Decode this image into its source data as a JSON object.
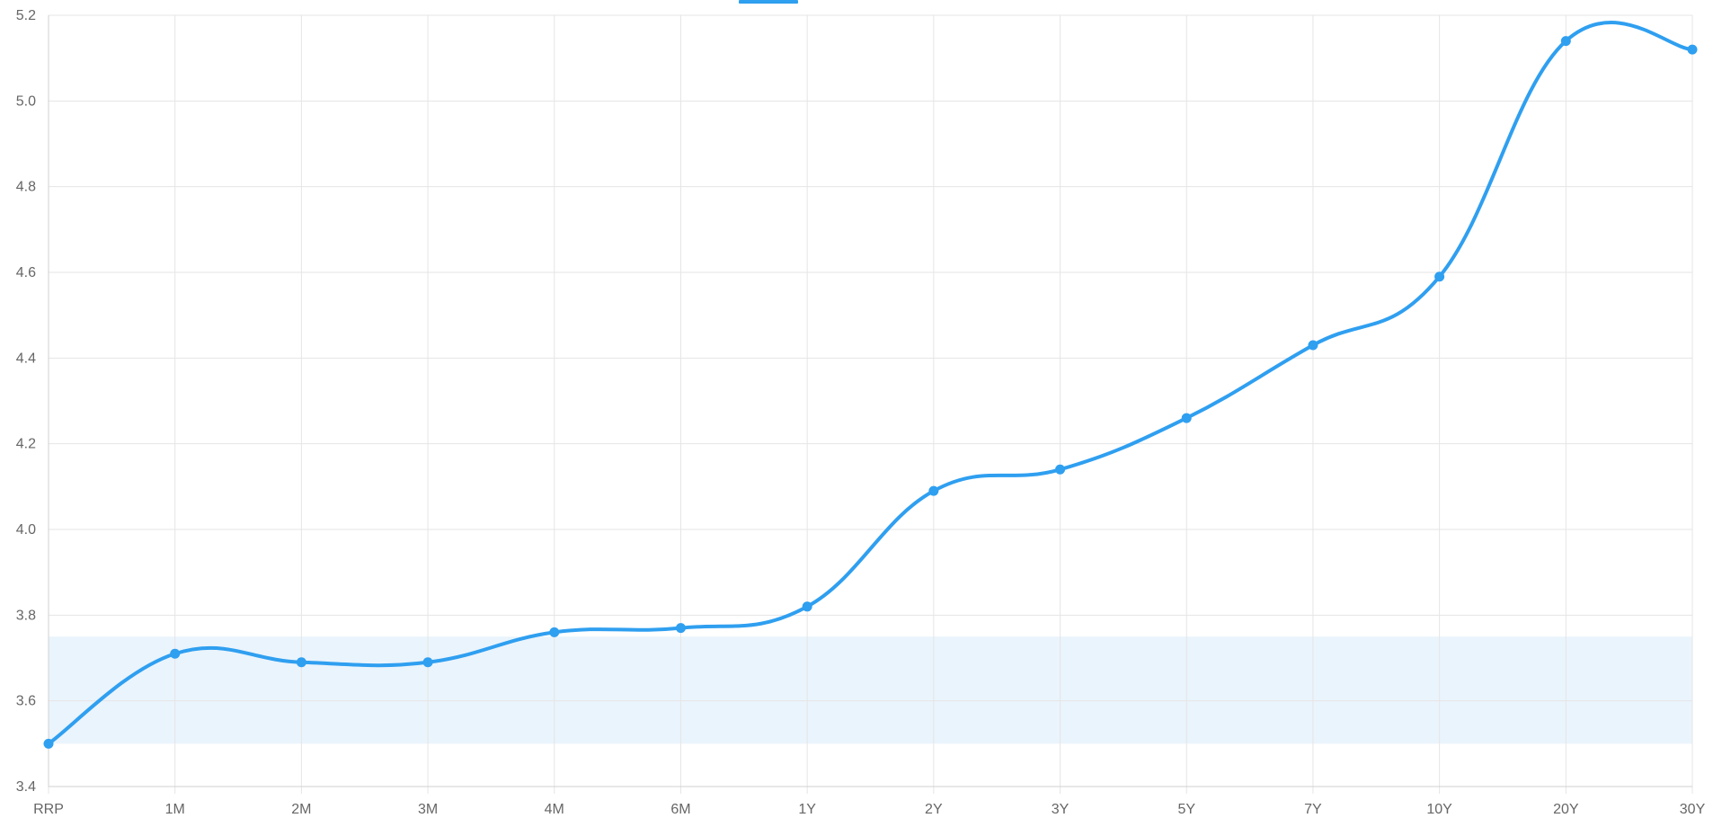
{
  "chart_data": {
    "type": "line",
    "title": "",
    "xlabel": "",
    "ylabel": "",
    "categories": [
      "RRP",
      "1M",
      "2M",
      "3M",
      "4M",
      "6M",
      "1Y",
      "2Y",
      "3Y",
      "5Y",
      "7Y",
      "10Y",
      "20Y",
      "30Y"
    ],
    "series": [
      {
        "values": [
          3.5,
          3.71,
          3.69,
          3.69,
          3.76,
          3.77,
          3.82,
          4.09,
          4.14,
          4.26,
          4.43,
          4.59,
          5.14,
          5.12
        ],
        "color": "#2f9ff0"
      }
    ],
    "ylim": [
      3.4,
      5.2
    ],
    "yticks": [
      "3.4",
      "3.6",
      "3.8",
      "4.0",
      "4.2",
      "4.4",
      "4.6",
      "4.8",
      "5.0",
      "5.2"
    ],
    "band": {
      "from": 3.5,
      "to": 3.75,
      "color": "#eaf4fc"
    },
    "legend": {
      "position": "top-center",
      "swatch_color": "#2f9ff0"
    },
    "grid": true
  }
}
